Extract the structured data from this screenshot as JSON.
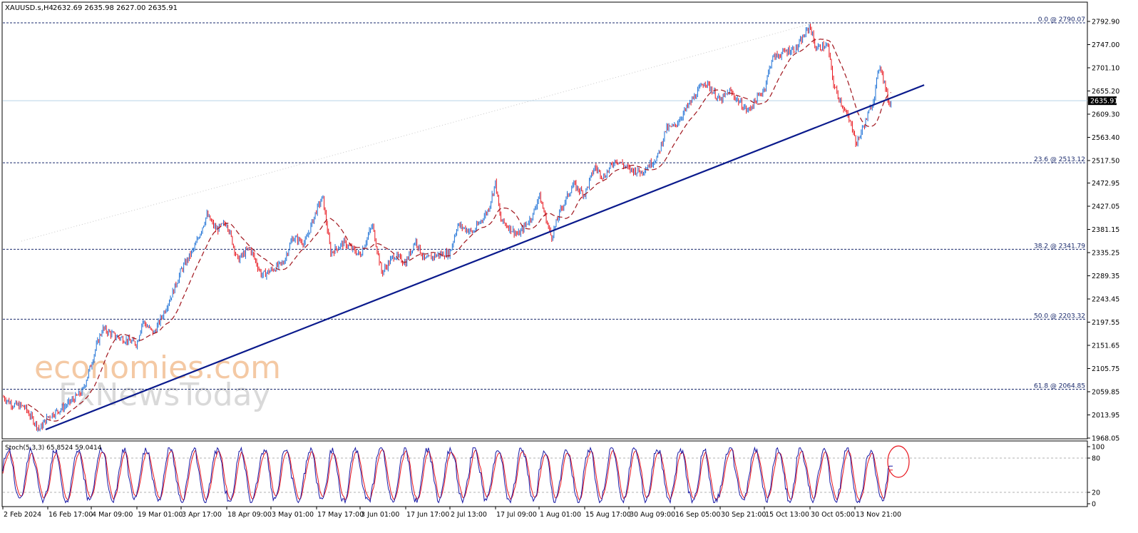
{
  "header": {
    "symbol": "XAUUSD.s,H4",
    "ohlc": "2632.69 2635.98 2627.00 2635.91"
  },
  "watermark": {
    "line1": "economies.com",
    "line2": "FxNewsToday"
  },
  "stoch": {
    "label": "Stoch(5,3,3) 65.8524 59.0414",
    "levels": [
      100,
      80,
      20,
      0
    ],
    "level_labels": [
      "100",
      "80",
      "20",
      "0"
    ],
    "last_main": 65.8524,
    "last_signal": 59.0414
  },
  "colors": {
    "bull": "#1a6fd6",
    "bear": "#e8141c",
    "ma": "#a0141c",
    "trendline": "#0a1a8c",
    "fib": "#1a2a6c",
    "current_price_line": "#b8d3e6",
    "stoch_main": "#1a1aa6",
    "stoch_signal": "#e8141c",
    "highlight_circle": "#e8141c",
    "grid_axis": "#000000"
  },
  "chart_data": {
    "type": "candlestick",
    "title": "XAUUSD.s,H4",
    "timeframe": "H4",
    "ylim": [
      1968.05,
      2792.9
    ],
    "current_price": 2635.91,
    "current_price_label": "2635.91",
    "y_ticks": [
      2792.9,
      2747.0,
      2701.1,
      2655.2,
      2609.3,
      2563.4,
      2517.5,
      2472.95,
      2427.05,
      2381.15,
      2335.25,
      2289.35,
      2243.45,
      2197.55,
      2151.65,
      2105.75,
      2059.85,
      2013.95,
      1968.05
    ],
    "y_tick_labels": [
      "2792.90",
      "2747.00",
      "2701.10",
      "2655.20",
      "2609.30",
      "2563.40",
      "2517.50",
      "2472.95",
      "2427.05",
      "2381.15",
      "2335.25",
      "2289.35",
      "2243.45",
      "2197.55",
      "2151.65",
      "2105.75",
      "2059.85",
      "2013.95",
      "1968.05"
    ],
    "x_ticks": [
      "2 Feb 2024",
      "16 Feb 17:00",
      "4 Mar 09:00",
      "19 Mar 01:00",
      "3 Apr 17:00",
      "18 Apr 09:00",
      "3 May 01:00",
      "17 May 17:00",
      "3 Jun 01:00",
      "17 Jun 17:00",
      "2 Jul 13:00",
      "17 Jul 09:00",
      "1 Aug 01:00",
      "15 Aug 17:00",
      "30 Aug 09:00",
      "16 Sep 05:00",
      "30 Sep 21:00",
      "15 Oct 13:00",
      "30 Oct 05:00",
      "13 Nov 21:00"
    ],
    "fibonacci": [
      {
        "level": "0.0",
        "price": 2790.07,
        "label": "0.0 @ 2790.07"
      },
      {
        "level": "23.6",
        "price": 2513.12,
        "label": "23.6 @ 2513.12"
      },
      {
        "level": "38.2",
        "price": 2341.79,
        "label": "38.2 @ 2341.79"
      },
      {
        "level": "50.0",
        "price": 2203.32,
        "label": "50.0 @ 2203.32"
      },
      {
        "level": "61.8",
        "price": 2064.85,
        "label": "61.8 @ 2064.85"
      }
    ],
    "trendline": {
      "start": [
        "16 Feb 2024",
        1985
      ],
      "end": [
        "26 Nov 2024",
        2667
      ]
    },
    "price_path": [
      [
        "2 Feb 2024",
        2050
      ],
      [
        "5 Feb 2024",
        2035
      ],
      [
        "9 Feb 2024",
        2030
      ],
      [
        "14 Feb 2024",
        1985
      ],
      [
        "16 Feb 17:00",
        2010
      ],
      [
        "23 Feb 2024",
        2030
      ],
      [
        "1 Mar 2024",
        2060
      ],
      [
        "4 Mar 09:00",
        2115
      ],
      [
        "6 Mar 2024",
        2150
      ],
      [
        "8 Mar 2024",
        2185
      ],
      [
        "12 Mar 2024",
        2170
      ],
      [
        "19 Mar 01:00",
        2155
      ],
      [
        "21 Mar 2024",
        2200
      ],
      [
        "25 Mar 2024",
        2175
      ],
      [
        "28 Mar 2024",
        2210
      ],
      [
        "1 Apr 2024",
        2260
      ],
      [
        "3 Apr 17:00",
        2300
      ],
      [
        "8 Apr 2024",
        2345
      ],
      [
        "12 Apr 2024",
        2410
      ],
      [
        "15 Apr 2024",
        2380
      ],
      [
        "18 Apr 09:00",
        2395
      ],
      [
        "22 Apr 2024",
        2320
      ],
      [
        "26 Apr 2024",
        2345
      ],
      [
        "30 Apr 2024",
        2290
      ],
      [
        "3 May 01:00",
        2300
      ],
      [
        "7 May 2024",
        2315
      ],
      [
        "10 May 2024",
        2365
      ],
      [
        "14 May 2024",
        2355
      ],
      [
        "17 May 17:00",
        2420
      ],
      [
        "20 May 2024",
        2445
      ],
      [
        "23 May 2024",
        2335
      ],
      [
        "28 May 2024",
        2355
      ],
      [
        "3 Jun 01:00",
        2330
      ],
      [
        "7 Jun 2024",
        2390
      ],
      [
        "10 Jun 2024",
        2295
      ],
      [
        "14 Jun 2024",
        2330
      ],
      [
        "17 Jun 17:00",
        2315
      ],
      [
        "21 Jun 2024",
        2360
      ],
      [
        "24 Jun 2024",
        2320
      ],
      [
        "28 Jun 2024",
        2330
      ],
      [
        "2 Jul 13:00",
        2335
      ],
      [
        "5 Jul 2024",
        2390
      ],
      [
        "10 Jul 2024",
        2375
      ],
      [
        "15 Jul 2024",
        2420
      ],
      [
        "17 Jul 09:00",
        2475
      ],
      [
        "19 Jul 2024",
        2400
      ],
      [
        "25 Jul 2024",
        2370
      ],
      [
        "30 Jul 2024",
        2410
      ],
      [
        "1 Aug 01:00",
        2450
      ],
      [
        "5 Aug 2024",
        2365
      ],
      [
        "8 Aug 2024",
        2420
      ],
      [
        "12 Aug 2024",
        2470
      ],
      [
        "15 Aug 17:00",
        2450
      ],
      [
        "19 Aug 2024",
        2505
      ],
      [
        "22 Aug 2024",
        2485
      ],
      [
        "26 Aug 2024",
        2520
      ],
      [
        "30 Aug 09:00",
        2500
      ],
      [
        "4 Sep 2024",
        2495
      ],
      [
        "10 Sep 2024",
        2525
      ],
      [
        "13 Sep 2024",
        2580
      ],
      [
        "16 Sep 05:00",
        2585
      ],
      [
        "20 Sep 2024",
        2620
      ],
      [
        "26 Sep 2024",
        2675
      ],
      [
        "30 Sep 21:00",
        2635
      ],
      [
        "4 Oct 2024",
        2655
      ],
      [
        "10 Oct 2024",
        2615
      ],
      [
        "15 Oct 13:00",
        2660
      ],
      [
        "18 Oct 2024",
        2720
      ],
      [
        "23 Oct 2024",
        2735
      ],
      [
        "26 Oct 2024",
        2740
      ],
      [
        "30 Oct 05:00",
        2785
      ],
      [
        "1 Nov 2024",
        2740
      ],
      [
        "5 Nov 2024",
        2745
      ],
      [
        "7 Nov 2024",
        2665
      ],
      [
        "11 Nov 2024",
        2610
      ],
      [
        "13 Nov 21:00",
        2570
      ],
      [
        "14 Nov 2024",
        2545
      ],
      [
        "18 Nov 2024",
        2605
      ],
      [
        "20 Nov 2024",
        2640
      ],
      [
        "22 Nov 2024",
        2710
      ],
      [
        "25 Nov 2024",
        2630
      ],
      [
        "26 Nov 2024",
        2636
      ]
    ]
  }
}
